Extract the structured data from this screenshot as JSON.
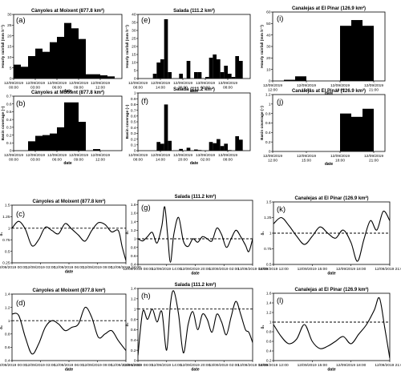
{
  "chart_data": [
    {
      "id": "a",
      "type": "bar",
      "panel_label": "(a)",
      "title": "Cànyoles at Moixent (877.8 km²)",
      "xlabel": "date",
      "ylabel": "Hourly rainfall (mm h⁻¹)",
      "ylim": [
        0,
        30
      ],
      "y_ticks": [
        0,
        5,
        10,
        15,
        20,
        25,
        30
      ],
      "x_range": [
        0,
        15
      ],
      "x_ticks": [
        {
          "x": 0,
          "label": "12/09/2019\n00:00"
        },
        {
          "x": 3,
          "label": "12/09/2019\n03:00"
        },
        {
          "x": 6,
          "label": "12/09/2019\n06:00"
        },
        {
          "x": 9,
          "label": "12/09/2019\n09:00"
        },
        {
          "x": 12,
          "label": "12/09/2019\n12:00"
        }
      ],
      "values": [
        6.5,
        5.5,
        10.5,
        14,
        12.5,
        17,
        19.5,
        26,
        23.5,
        18.5,
        2,
        2,
        1.5,
        1,
        0
      ]
    },
    {
      "id": "e",
      "type": "bar",
      "panel_label": "(e)",
      "title": "Salada (111.2 km²)",
      "xlabel": "date",
      "ylabel": "Hourly rainfall (mm h⁻¹)",
      "ylim": [
        0,
        40
      ],
      "y_ticks": [
        0,
        5,
        10,
        15,
        20,
        25,
        30,
        35,
        40
      ],
      "x_range": [
        0,
        30
      ],
      "x_ticks": [
        {
          "x": 0,
          "label": "12/09/2019\n08:00"
        },
        {
          "x": 6,
          "label": "12/09/2019\n14:00"
        },
        {
          "x": 12,
          "label": "12/09/2019\n20:00"
        },
        {
          "x": 18,
          "label": "13/09/2019\n02:00"
        },
        {
          "x": 24,
          "label": "13/09/2019\n08:00"
        }
      ],
      "values": [
        0,
        0,
        0,
        0,
        3,
        10,
        12,
        37,
        4,
        0,
        0,
        3,
        0,
        11,
        0,
        4,
        4,
        0,
        1,
        13,
        15,
        12,
        4,
        8,
        3,
        1,
        14,
        11,
        0,
        0
      ]
    },
    {
      "id": "i",
      "type": "bar",
      "panel_label": "(i)",
      "title": "Canalejas at El Pinar (126.9 km²)",
      "xlabel": "date",
      "ylabel": "Hourly rainfall (mm h⁻¹)",
      "ylim": [
        0,
        60
      ],
      "y_ticks": [
        0,
        10,
        20,
        30,
        40,
        50,
        60
      ],
      "x_range": [
        0,
        10
      ],
      "x_ticks": [
        {
          "x": 0,
          "label": "12/09/2019\n12:00"
        },
        {
          "x": 3,
          "label": "12/09/2019\n15:00"
        },
        {
          "x": 6,
          "label": "12/09/2019\n18:00"
        },
        {
          "x": 9,
          "label": "12/09/2019\n21:00"
        }
      ],
      "values": [
        0,
        1,
        4,
        0,
        0,
        0,
        48,
        53,
        48,
        0
      ]
    },
    {
      "id": "b",
      "type": "bar",
      "panel_label": "(b)",
      "title": "Cànyoles at Moixent (877.8 km²)",
      "xlabel": "date",
      "ylabel": "Basin coverage (–)",
      "ylim": [
        0,
        0.7
      ],
      "y_ticks": [
        0,
        0.1,
        0.2,
        0.3,
        0.4,
        0.5,
        0.6,
        0.7
      ],
      "x_range": [
        0,
        15
      ],
      "x_ticks": [
        {
          "x": 0,
          "label": "12/09/2019\n00:00"
        },
        {
          "x": 3,
          "label": "12/09/2019\n03:00"
        },
        {
          "x": 6,
          "label": "12/09/2019\n06:00"
        },
        {
          "x": 9,
          "label": "12/09/2019\n09:00"
        },
        {
          "x": 12,
          "label": "12/09/2019\n12:00"
        }
      ],
      "values": [
        0,
        0,
        0.12,
        0.19,
        0.2,
        0.22,
        0.3,
        0.62,
        0.62,
        0.37,
        0,
        0.02,
        0,
        0,
        0
      ]
    },
    {
      "id": "f",
      "type": "bar",
      "panel_label": "(f)",
      "title": "Salada (111.2 km²)",
      "xlabel": "date",
      "ylabel": "Basin coverage (–)",
      "ylim": [
        0,
        1
      ],
      "y_ticks": [
        0,
        0.1,
        0.2,
        0.3,
        0.4,
        0.5,
        0.6,
        0.7,
        0.8,
        0.9,
        1
      ],
      "x_range": [
        0,
        30
      ],
      "x_ticks": [
        {
          "x": 0,
          "label": "12/09/2019\n08:00"
        },
        {
          "x": 6,
          "label": "12/09/2019\n14:00"
        },
        {
          "x": 12,
          "label": "12/09/2019\n20:00"
        },
        {
          "x": 18,
          "label": "13/09/2019\n02:00"
        },
        {
          "x": 24,
          "label": "13/09/2019\n08:00"
        }
      ],
      "values": [
        0,
        0,
        0,
        0,
        0,
        0.15,
        0.12,
        0.8,
        0.17,
        0,
        0,
        0.03,
        0,
        0.05,
        0,
        0.02,
        0.01,
        0,
        0,
        0.15,
        0.13,
        0.2,
        0.08,
        0.12,
        0.01,
        0,
        0.25,
        0.19,
        0,
        0
      ]
    },
    {
      "id": "j",
      "type": "bar",
      "panel_label": "(j)",
      "title": "Canalejas at El Pinar (126.9 km²)",
      "xlabel": "date",
      "ylabel": "Basin coverage (–)",
      "ylim": [
        0,
        1.2
      ],
      "y_ticks": [
        0,
        0.2,
        0.4,
        0.6,
        0.8,
        1,
        1.2
      ],
      "x_range": [
        0,
        10
      ],
      "x_ticks": [
        {
          "x": 0,
          "label": "12/09/2019\n12:00"
        },
        {
          "x": 3,
          "label": "12/09/2019\n15:00"
        },
        {
          "x": 6,
          "label": "12/09/2019\n18:00"
        },
        {
          "x": 9,
          "label": "12/09/2019\n21:00"
        }
      ],
      "values": [
        0,
        0,
        0,
        0,
        0,
        0,
        0.8,
        0.73,
        0.9,
        0
      ]
    },
    {
      "id": "c",
      "type": "line",
      "panel_label": "(c)",
      "title": "Cànyoles at Moixent (877.8 km²)",
      "xlabel": "date",
      "ylabel": "δ₁",
      "ylim": [
        0.25,
        1.5
      ],
      "y_ticks": [
        0.25,
        0.5,
        0.75,
        1,
        1.25,
        1.5
      ],
      "x_range": [
        0,
        12
      ],
      "reference_line": 1,
      "x_ticks": [
        {
          "x": 0,
          "label": "12/09/2019 00:00"
        },
        {
          "x": 3,
          "label": "12/09/2019 03:00"
        },
        {
          "x": 6,
          "label": "12/09/2019 06:00"
        },
        {
          "x": 9,
          "label": "12/09/2019 09:00"
        },
        {
          "x": 12,
          "label": "12/09/2019 12:00"
        }
      ],
      "x": [
        0,
        0.7,
        1.4,
        2.1,
        2.8,
        3.5,
        4.2,
        4.9,
        5.6,
        6.3,
        7,
        7.7,
        8.4,
        9.1,
        9.8,
        10.5,
        11.2,
        11.6,
        12
      ],
      "y": [
        1.0,
        1.15,
        0.98,
        0.62,
        0.75,
        1.02,
        0.95,
        0.88,
        1.1,
        0.98,
        0.85,
        0.72,
        0.95,
        1.12,
        1.08,
        0.92,
        0.95,
        0.6,
        0.3
      ]
    },
    {
      "id": "g",
      "type": "line",
      "panel_label": "(g)",
      "title": "Salada (111.2 km²)",
      "xlabel": "date",
      "ylabel": "δ₁",
      "ylim": [
        0.4,
        1.9
      ],
      "y_ticks": [
        0.4,
        0.6,
        0.8,
        1,
        1.2,
        1.4,
        1.6,
        1.8
      ],
      "x_range": [
        0,
        24
      ],
      "reference_line": 1,
      "x_ticks": [
        {
          "x": 0,
          "label": "12/09/2019 08:00"
        },
        {
          "x": 6,
          "label": "12/09/2019 14:00"
        },
        {
          "x": 12,
          "label": "12/09/2019 20:00"
        },
        {
          "x": 18,
          "label": "13/09/2019 02:00"
        },
        {
          "x": 24,
          "label": "13/09/2019 08:00"
        }
      ],
      "x": [
        0,
        1,
        2,
        3,
        4,
        5,
        5.6,
        6.2,
        6.8,
        7.5,
        8.5,
        9.5,
        10.5,
        11.5,
        12.5,
        13.5,
        14.5,
        15.5,
        16.5,
        17.5,
        18.5,
        19.5,
        20.5,
        21.5,
        22.5,
        23.2,
        24
      ],
      "y": [
        1.0,
        0.95,
        1.05,
        1.15,
        0.9,
        1.3,
        1.75,
        1.1,
        0.45,
        1.1,
        1.5,
        0.95,
        0.82,
        1.0,
        0.92,
        1.05,
        1.0,
        0.95,
        1.25,
        1.1,
        0.8,
        1.0,
        1.2,
        1.05,
        0.85,
        0.7,
        1.0
      ]
    },
    {
      "id": "k",
      "type": "line",
      "panel_label": "(k)",
      "title": "Canalejas at El Pinar (126.9 km²)",
      "xlabel": "date",
      "ylabel": "δ₁",
      "ylim": [
        0.5,
        1.5
      ],
      "y_ticks": [
        0.5,
        0.75,
        1,
        1.25,
        1.5
      ],
      "x_range": [
        0,
        9
      ],
      "reference_line": 1,
      "x_ticks": [
        {
          "x": 0,
          "label": "12/09/2019 12:00"
        },
        {
          "x": 3,
          "label": "12/09/2019 15:00"
        },
        {
          "x": 6,
          "label": "12/09/2019 18:00"
        },
        {
          "x": 9,
          "label": "12/09/2019 21:00"
        }
      ],
      "x": [
        0,
        0.6,
        1.2,
        1.8,
        2.4,
        3.0,
        3.6,
        4.2,
        4.8,
        5.4,
        6.0,
        6.5,
        7.0,
        7.5,
        8.0,
        8.5,
        9.0
      ],
      "y": [
        1.15,
        1.25,
        1.12,
        0.95,
        0.82,
        0.95,
        1.1,
        1.0,
        0.92,
        1.05,
        0.85,
        0.55,
        0.9,
        1.2,
        1.05,
        1.35,
        1.2
      ]
    },
    {
      "id": "d",
      "type": "line",
      "panel_label": "(d)",
      "title": "Cànyoles at Moixent (877.8 km²)",
      "xlabel": "date",
      "ylabel": "δ₂",
      "ylim": [
        0.4,
        1.4
      ],
      "y_ticks": [
        0.4,
        0.6,
        0.8,
        1,
        1.2,
        1.4
      ],
      "x_range": [
        0,
        12
      ],
      "reference_line": 1,
      "x_ticks": [
        {
          "x": 0,
          "label": "12/09/2019 00:00"
        },
        {
          "x": 3,
          "label": "12/09/2019 03:00"
        },
        {
          "x": 6,
          "label": "12/09/2019 06:00"
        },
        {
          "x": 9,
          "label": "12/09/2019 09:00"
        },
        {
          "x": 12,
          "label": "12/09/2019 12:00"
        }
      ],
      "x": [
        0,
        0.7,
        1.4,
        2.1,
        2.8,
        3.5,
        4.2,
        4.9,
        5.6,
        6.3,
        7,
        7.7,
        8.4,
        9.1,
        9.8,
        10.5,
        11.2,
        12
      ],
      "y": [
        1.1,
        1.08,
        0.75,
        0.5,
        0.65,
        0.9,
        1.0,
        0.95,
        0.85,
        0.9,
        0.95,
        1.2,
        1.05,
        0.75,
        0.8,
        0.85,
        0.7,
        0.55
      ]
    },
    {
      "id": "h",
      "type": "line",
      "panel_label": "(h)",
      "title": "Salada (111.2 km²)",
      "xlabel": "date",
      "ylabel": "δ₂",
      "ylim": [
        0,
        1.4
      ],
      "y_ticks": [
        0,
        0.2,
        0.4,
        0.6,
        0.8,
        1,
        1.2,
        1.4
      ],
      "x_range": [
        0,
        24
      ],
      "reference_line": 1,
      "x_ticks": [
        {
          "x": 0,
          "label": "12/09/2019 08:00"
        },
        {
          "x": 6,
          "label": "12/09/2019 14:00"
        },
        {
          "x": 12,
          "label": "12/09/2019 20:00"
        },
        {
          "x": 18,
          "label": "13/09/2019 02:00"
        },
        {
          "x": 24,
          "label": "13/09/2019 08:00"
        }
      ],
      "x": [
        0,
        1,
        2,
        3,
        4,
        5,
        6,
        6.8,
        7.5,
        8.5,
        9.5,
        10.5,
        11.5,
        12.5,
        13.5,
        14.5,
        15.5,
        16.5,
        17.5,
        18.5,
        19.5,
        20.5,
        21.5,
        22.5,
        23.2,
        24
      ],
      "y": [
        0.1,
        0.95,
        0.8,
        1.0,
        0.75,
        0.95,
        0.2,
        1.1,
        1.35,
        0.9,
        0.15,
        0.7,
        0.95,
        0.6,
        0.9,
        0.8,
        0.55,
        0.9,
        0.75,
        0.5,
        0.85,
        1.15,
        0.9,
        0.6,
        0.55,
        0.35
      ]
    },
    {
      "id": "l",
      "type": "line",
      "panel_label": "(l)",
      "title": "Canalejas at El Pinar (126.9 km²)",
      "xlabel": "date",
      "ylabel": "δ₂",
      "ylim": [
        0.2,
        1.6
      ],
      "y_ticks": [
        0.2,
        0.4,
        0.6,
        0.8,
        1,
        1.2,
        1.4,
        1.6
      ],
      "x_range": [
        0,
        9
      ],
      "reference_line": 1,
      "x_ticks": [
        {
          "x": 0,
          "label": "12/09/2019 12:00"
        },
        {
          "x": 3,
          "label": "12/09/2019 15:00"
        },
        {
          "x": 6,
          "label": "12/09/2019 18:00"
        },
        {
          "x": 9,
          "label": "12/09/2019 21:00"
        }
      ],
      "x": [
        0,
        0.6,
        1.2,
        1.8,
        2.4,
        3.0,
        3.6,
        4.2,
        4.8,
        5.4,
        6.0,
        6.6,
        7.2,
        7.8,
        8.2,
        8.6,
        9.0
      ],
      "y": [
        0.95,
        0.7,
        0.55,
        0.65,
        0.95,
        0.6,
        0.45,
        0.5,
        0.6,
        0.7,
        0.55,
        0.75,
        0.95,
        1.25,
        1.5,
        0.9,
        0.25
      ]
    }
  ]
}
